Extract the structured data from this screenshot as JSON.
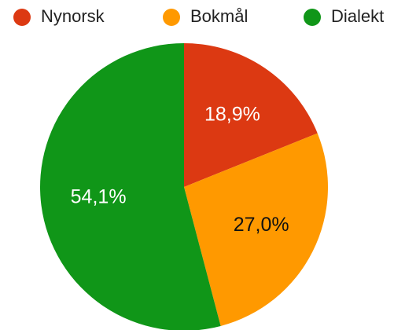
{
  "chart_data": {
    "type": "pie",
    "categories": [
      "Nynorsk",
      "Bokmål",
      "Dialekt"
    ],
    "values": [
      18.9,
      27.0,
      54.1
    ],
    "value_labels": [
      "18,9%",
      "27,0%",
      "54,1%"
    ],
    "colors": [
      "#dc3912",
      "#ff9900",
      "#109618"
    ],
    "legend": "top"
  }
}
